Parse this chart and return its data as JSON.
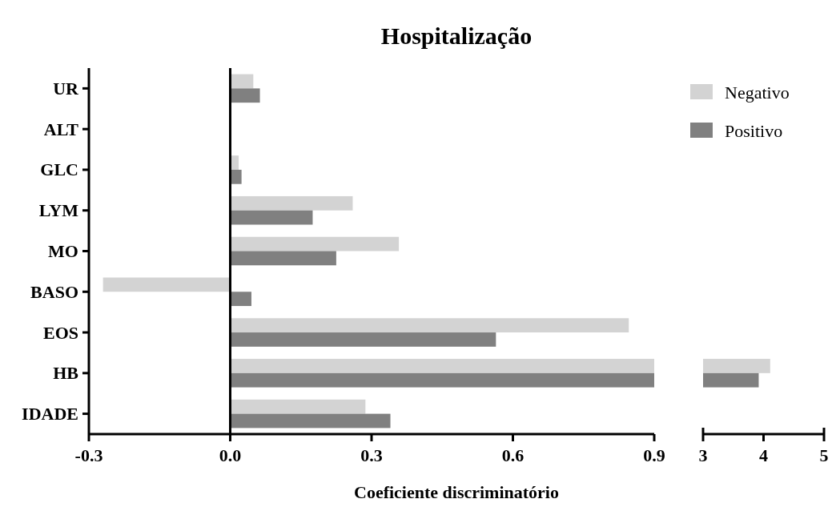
{
  "chart_data": [
    {
      "type": "bar",
      "orientation": "horizontal",
      "title": "Hospitalização",
      "xlabel": "Coeficiente discriminatório",
      "categories": [
        "UR",
        "ALT",
        "GLC",
        "LYM",
        "MO",
        "BASO",
        "EOS",
        "HB",
        "IDADE"
      ],
      "series": [
        {
          "color": "#d3d3d3",
          "values": [
            0.049,
            0,
            0.018,
            0.26,
            0.358,
            -0.27,
            0.846,
            0.9,
            0.287
          ]
        },
        {
          "color": "#808080",
          "values": [
            0.063,
            0,
            0.024,
            0.175,
            0.225,
            0.045,
            0.564,
            0.9,
            0.34
          ]
        }
      ],
      "xlim": [
        -0.3,
        0.9
      ],
      "xticks": [
        {
          "value": -0.3,
          "label": "-0.3"
        },
        {
          "value": 0,
          "label": "0.0"
        },
        {
          "value": 0.3,
          "label": "0.3"
        },
        {
          "value": 0.6,
          "label": "0.6"
        },
        {
          "value": 0.9,
          "label": "0.9"
        }
      ]
    },
    {
      "type": "bar",
      "orientation": "horizontal",
      "series": [
        {
          "name": "Negativo",
          "color": "#d3d3d3",
          "values": [
            null,
            null,
            null,
            null,
            null,
            null,
            null,
            4.11,
            null
          ]
        },
        {
          "name": "Positivo",
          "color": "#808080",
          "values": [
            null,
            null,
            null,
            null,
            null,
            null,
            null,
            3.92,
            null
          ]
        }
      ],
      "xlim": [
        3,
        5
      ],
      "xticks": [
        3,
        4,
        5
      ],
      "tick_labels": "x",
      "legend": "top left"
    }
  ]
}
